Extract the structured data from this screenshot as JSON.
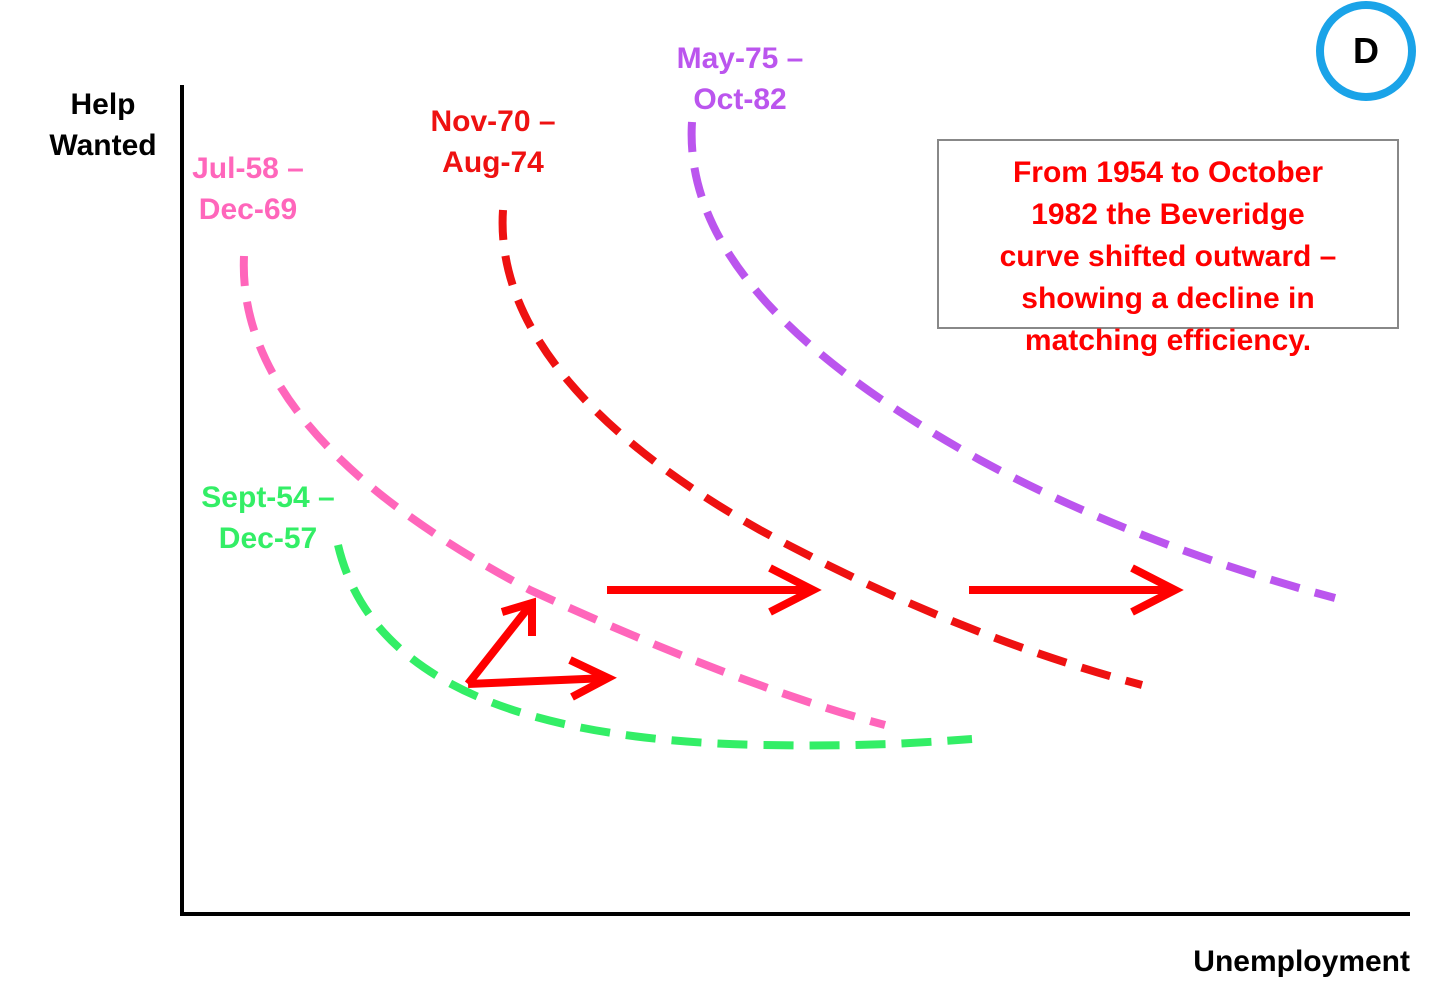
{
  "axes": {
    "y_label_line1": "Help",
    "y_label_line2": "Wanted",
    "x_label": "Unemployment"
  },
  "badge": {
    "letter": "D",
    "color": "#1aa3e8"
  },
  "curves": [
    {
      "line1": "Sept-54 –",
      "line2": "Dec-57",
      "color": "#33ee66"
    },
    {
      "line1": "Jul-58 –",
      "line2": "Dec-69",
      "color": "#ff66bb"
    },
    {
      "line1": "Nov-70 –",
      "line2": "Aug-74",
      "color": "#ee1111"
    },
    {
      "line1": "May-75 –",
      "line2": "Oct-82",
      "color": "#bb55ee"
    }
  ],
  "note": {
    "lines": [
      "From 1954 to October",
      "1982 the Beveridge",
      "curve shifted outward –",
      "showing a decline in",
      "matching efficiency."
    ],
    "color": "#ff0000"
  },
  "arrow_color": "#ff0000"
}
